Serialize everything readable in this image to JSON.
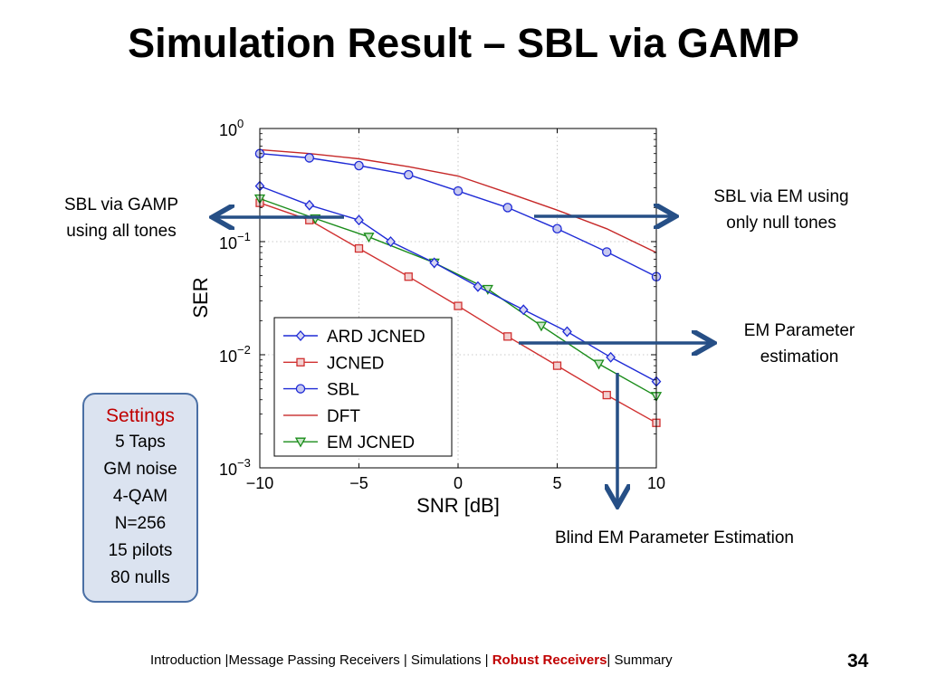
{
  "slide": {
    "title": "Simulation Result – SBL via GAMP",
    "page_number": "34"
  },
  "annotations": {
    "left_line1": "SBL via GAMP",
    "left_line2": "using all tones",
    "right_top_line1": "SBL via EM using",
    "right_top_line2": "only null tones",
    "right_mid_line1": "EM Parameter",
    "right_mid_line2": "estimation",
    "bottom": "Blind EM Parameter Estimation"
  },
  "settings": {
    "heading": "Settings",
    "items": [
      "5 Taps",
      "GM noise",
      "4-QAM",
      "N=256",
      "15 pilots",
      "80 nulls"
    ]
  },
  "footer": {
    "part1": "Introduction |Message Passing Receivers | Simulations | ",
    "highlight": "Robust Receivers",
    "part2": "| Summary"
  },
  "colors": {
    "ard_jcned": "#1f2bd6",
    "jcned": "#d03030",
    "sbl": "#1f2bd6",
    "dft": "#c62828",
    "em_jcned": "#1a8c1a",
    "arrow": "#264f86",
    "settings_heading": "#c00000"
  },
  "chart_data": {
    "type": "line",
    "xlabel": "SNR [dB]",
    "ylabel": "SER",
    "xlim": [
      -10,
      10
    ],
    "ylim": [
      0.001,
      1
    ],
    "yscale": "log",
    "grid": true,
    "legend_position": "lower-left",
    "x_ticks": [
      "−10",
      "−5",
      "0",
      "5",
      "10"
    ],
    "y_ticks": [
      {
        "base": "10",
        "exp": "0"
      },
      {
        "base": "10",
        "exp": "−1"
      },
      {
        "base": "10",
        "exp": "−2"
      },
      {
        "base": "10",
        "exp": "−3"
      }
    ],
    "series": [
      {
        "name": "ARD JCNED",
        "marker": "diamond",
        "color": "#1f2bd6",
        "x": [
          -10,
          -7.5,
          -5,
          -3.4,
          -1.2,
          1,
          3.3,
          5.5,
          7.7,
          10
        ],
        "y": [
          0.31,
          0.21,
          0.155,
          0.1,
          0.065,
          0.04,
          0.025,
          0.016,
          0.0095,
          0.0058
        ]
      },
      {
        "name": "JCNED",
        "marker": "square",
        "color": "#d03030",
        "x": [
          -10,
          -7.5,
          -5,
          -2.5,
          0,
          2.5,
          5,
          7.5,
          10
        ],
        "y": [
          0.22,
          0.155,
          0.087,
          0.049,
          0.027,
          0.0145,
          0.008,
          0.0044,
          0.0025
        ]
      },
      {
        "name": "SBL",
        "marker": "circle",
        "color": "#1f2bd6",
        "x": [
          -10,
          -7.5,
          -5,
          -2.5,
          0,
          2.5,
          5,
          7.5,
          10
        ],
        "y": [
          0.6,
          0.55,
          0.47,
          0.39,
          0.28,
          0.2,
          0.13,
          0.081,
          0.049
        ]
      },
      {
        "name": "DFT",
        "marker": "none",
        "color": "#c62828",
        "x": [
          -10,
          -7.5,
          -5,
          -2.5,
          0,
          2.5,
          5,
          7.5,
          10
        ],
        "y": [
          0.65,
          0.6,
          0.54,
          0.46,
          0.38,
          0.27,
          0.19,
          0.13,
          0.08
        ]
      },
      {
        "name": "EM JCNED",
        "marker": "triangle-down",
        "color": "#1a8c1a",
        "x": [
          -10,
          -7.2,
          -4.5,
          -1.2,
          1.5,
          4.2,
          7.1,
          10
        ],
        "y": [
          0.24,
          0.16,
          0.11,
          0.065,
          0.038,
          0.018,
          0.0083,
          0.0043
        ]
      }
    ]
  }
}
